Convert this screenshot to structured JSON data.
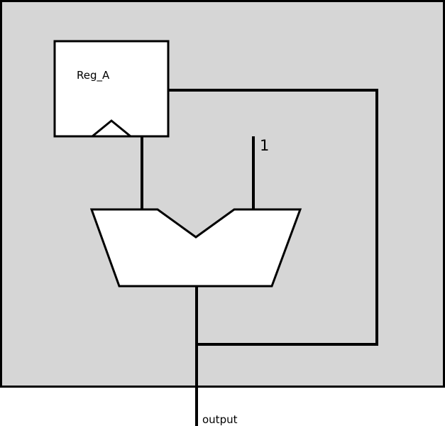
{
  "colors": {
    "background": "#d6d6d6",
    "block_fill": "#ffffff",
    "stroke": "#000000"
  },
  "register": {
    "label": "Reg_A"
  },
  "constant_input": {
    "label": "1"
  },
  "output": {
    "label": "output"
  }
}
